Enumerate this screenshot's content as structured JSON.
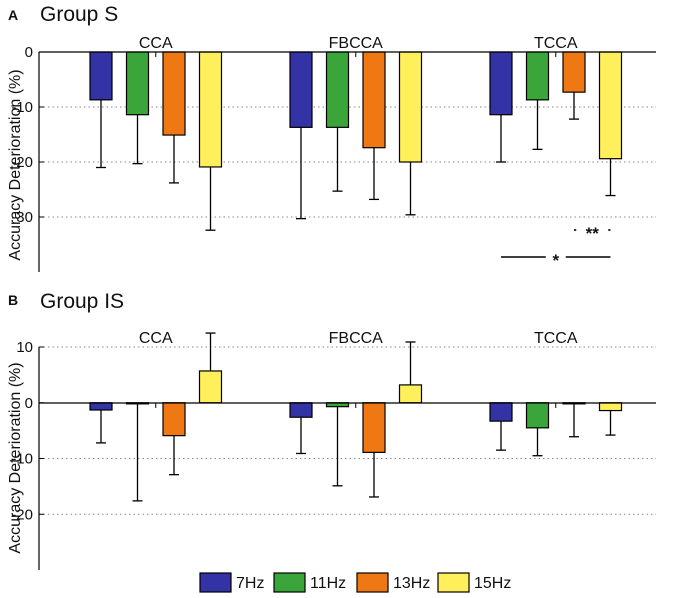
{
  "legend": [
    {
      "label": "7Hz",
      "color": "#3333a6"
    },
    {
      "label": "11Hz",
      "color": "#3aa63a"
    },
    {
      "label": "13Hz",
      "color": "#f07814"
    },
    {
      "label": "15Hz",
      "color": "#ffef5a"
    }
  ],
  "chart_data": [
    {
      "type": "bar",
      "panel_letter": "A",
      "title": "Group S",
      "ylabel": "Accuracy Deterioration (%)",
      "ylim": [
        -40,
        0
      ],
      "yticks": [
        0,
        -10,
        -20,
        -30
      ],
      "grid": "horizontal-dotted",
      "categories": [
        "CCA",
        "FBCCA",
        "TCCA"
      ],
      "series": [
        {
          "name": "7Hz",
          "values": [
            -8.7,
            -13.7,
            -11.4
          ],
          "errors": [
            12.3,
            16.6,
            8.6
          ]
        },
        {
          "name": "11Hz",
          "values": [
            -11.4,
            -13.7,
            -8.7
          ],
          "errors": [
            8.9,
            11.6,
            9.0
          ]
        },
        {
          "name": "13Hz",
          "values": [
            -15.1,
            -17.4,
            -7.3
          ],
          "errors": [
            8.7,
            9.4,
            4.9
          ]
        },
        {
          "name": "15Hz",
          "values": [
            -20.9,
            -20.0,
            -19.4
          ],
          "errors": [
            11.5,
            9.6,
            6.7
          ]
        }
      ],
      "significance": [
        {
          "label": "**",
          "category": "TCCA",
          "from_series": "13Hz",
          "to_series": "15Hz"
        },
        {
          "label": "*",
          "category": "TCCA",
          "from_series": "7Hz",
          "to_series": "15Hz"
        }
      ]
    },
    {
      "type": "bar",
      "panel_letter": "B",
      "title": "Group IS",
      "ylabel": "Accuracy Deterioration (%)",
      "ylim": [
        -30,
        10
      ],
      "yticks": [
        10,
        0,
        -10,
        -20
      ],
      "grid": "horizontal-dotted",
      "categories": [
        "CCA",
        "FBCCA",
        "TCCA"
      ],
      "series": [
        {
          "name": "7Hz",
          "values": [
            -1.3,
            -2.6,
            -3.3
          ],
          "errors": [
            5.9,
            6.5,
            5.2
          ]
        },
        {
          "name": "11Hz",
          "values": [
            -0.2,
            -0.7,
            -4.5
          ],
          "errors": [
            17.4,
            14.2,
            5.0
          ]
        },
        {
          "name": "13Hz",
          "values": [
            -5.9,
            -8.9,
            -0.2
          ],
          "errors": [
            7.0,
            8.0,
            5.9
          ]
        },
        {
          "name": "15Hz",
          "values": [
            5.7,
            3.2,
            -1.4
          ],
          "errors": [
            6.8,
            7.7,
            4.4
          ]
        }
      ],
      "significance": []
    }
  ]
}
